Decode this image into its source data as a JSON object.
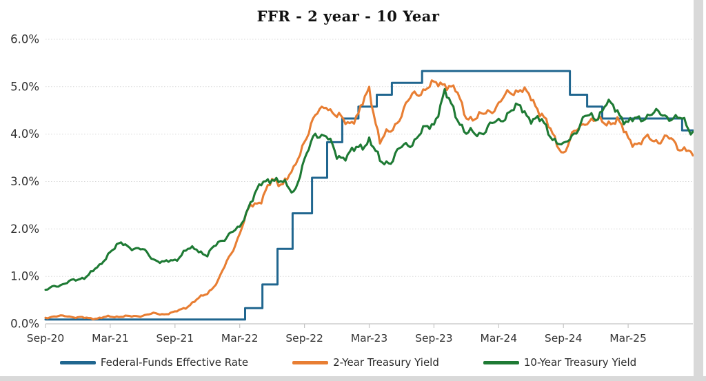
{
  "colors": {
    "background": "#ffffff",
    "ffr_line": "#20668f",
    "two_year_line": "#e87e33",
    "ten_year_line": "#1e7a34",
    "gridline": "#d8d8d8",
    "axis_line": "#c4c4c4",
    "label_text": "#333333",
    "title_text": "#111111",
    "edge_strip": "#d9d9d9"
  },
  "chart_data": {
    "type": "line",
    "title": "FFR - 2 year - 10 Year",
    "xlabel": "",
    "ylabel": "",
    "grid": true,
    "legend_position": "bottom",
    "x_axis": {
      "start": "Sep-2020",
      "end": "Sep-2025",
      "tick_interval_months": 6,
      "tick_labels": [
        "Sep-20",
        "Mar-21",
        "Sep-21",
        "Mar-22",
        "Sep-22",
        "Mar-23",
        "Sep-23",
        "Mar-24",
        "Sep-24",
        "Mar-25"
      ]
    },
    "y_axis": {
      "min": 0,
      "max": 6,
      "unit": "percent",
      "tick_labels": [
        "0.0%",
        "1.0%",
        "2.0%",
        "3.0%",
        "4.0%",
        "5.0%",
        "6.0%"
      ]
    },
    "series": [
      {
        "name": "Federal-Funds Effective Rate",
        "color": "#20668f",
        "style": "step",
        "end_t": 60,
        "steps": [
          {
            "date": "Sep-2020",
            "t": 0.0,
            "rate": 0.09
          },
          {
            "date": "Mar-2022",
            "t": 18.5,
            "rate": 0.33
          },
          {
            "date": "May-2022",
            "t": 20.1,
            "rate": 0.83
          },
          {
            "date": "Jun-2022",
            "t": 21.5,
            "rate": 1.58
          },
          {
            "date": "Jul-2022",
            "t": 22.9,
            "rate": 2.33
          },
          {
            "date": "Sep-2022",
            "t": 24.7,
            "rate": 3.08
          },
          {
            "date": "Nov-2022",
            "t": 26.1,
            "rate": 3.83
          },
          {
            "date": "Dec-2022",
            "t": 27.5,
            "rate": 4.33
          },
          {
            "date": "Feb-2023",
            "t": 29.0,
            "rate": 4.58
          },
          {
            "date": "Mar-2023",
            "t": 30.7,
            "rate": 4.83
          },
          {
            "date": "May-2023",
            "t": 32.1,
            "rate": 5.08
          },
          {
            "date": "Jul-2023",
            "t": 34.9,
            "rate": 5.33
          },
          {
            "date": "Sep-2024",
            "t": 48.6,
            "rate": 4.83
          },
          {
            "date": "Nov-2024",
            "t": 50.2,
            "rate": 4.58
          },
          {
            "date": "Dec-2024",
            "t": 51.6,
            "rate": 4.33
          },
          {
            "date": "Sep-2025",
            "t": 59.0,
            "rate": 4.08
          }
        ]
      },
      {
        "name": "2-Year Treasury Yield",
        "color": "#e87e33",
        "style": "line",
        "cadence": "monthly",
        "start": "Sep-2020",
        "values": [
          0.14,
          0.15,
          0.17,
          0.13,
          0.12,
          0.12,
          0.15,
          0.16,
          0.15,
          0.18,
          0.21,
          0.21,
          0.24,
          0.35,
          0.5,
          0.65,
          0.9,
          1.4,
          1.9,
          2.5,
          2.62,
          3.0,
          3.0,
          3.2,
          3.9,
          4.35,
          4.65,
          4.35,
          4.25,
          4.4,
          4.95,
          3.85,
          4.05,
          4.45,
          4.8,
          4.95,
          5.03,
          5.1,
          4.9,
          4.4,
          4.3,
          4.5,
          4.6,
          4.9,
          4.95,
          4.75,
          4.45,
          3.95,
          3.62,
          4.0,
          4.3,
          4.25,
          4.28,
          4.25,
          3.95,
          3.75,
          3.95,
          3.85,
          3.9,
          3.7,
          3.55
        ]
      },
      {
        "name": "10-Year Treasury Yield",
        "color": "#1e7a34",
        "style": "line",
        "cadence": "monthly",
        "start": "Sep-2020",
        "values": [
          0.7,
          0.8,
          0.88,
          0.92,
          1.05,
          1.2,
          1.55,
          1.68,
          1.62,
          1.55,
          1.38,
          1.28,
          1.35,
          1.55,
          1.58,
          1.45,
          1.7,
          1.9,
          2.0,
          2.6,
          2.92,
          3.1,
          2.95,
          2.8,
          3.4,
          4.05,
          3.95,
          3.55,
          3.55,
          3.7,
          3.9,
          3.4,
          3.45,
          3.7,
          3.85,
          4.05,
          4.25,
          4.85,
          4.45,
          4.0,
          4.0,
          4.15,
          4.25,
          4.5,
          4.55,
          4.35,
          4.25,
          3.95,
          3.7,
          4.05,
          4.35,
          4.35,
          4.65,
          4.48,
          4.25,
          4.3,
          4.45,
          4.4,
          4.38,
          4.28,
          4.05
        ]
      }
    ]
  }
}
